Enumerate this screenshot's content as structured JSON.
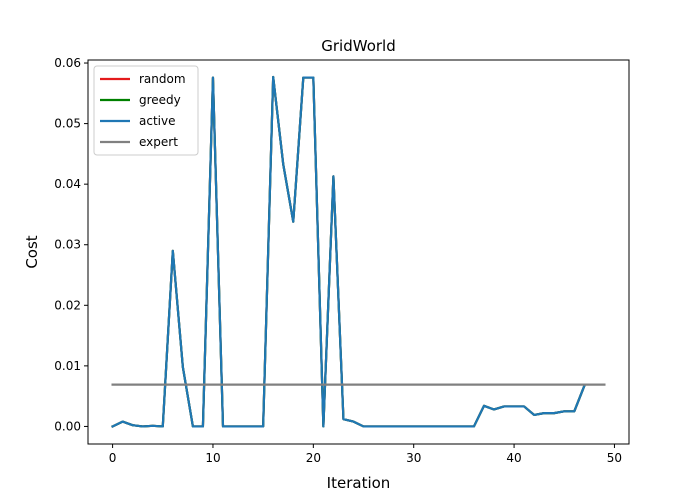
{
  "chart_data": {
    "type": "line",
    "title": "GridWorld",
    "xlabel": "Iteration",
    "ylabel": "Cost",
    "xlim": [
      -2.45,
      51.45
    ],
    "ylim": [
      -0.0029,
      0.0605
    ],
    "xticks": [
      0,
      10,
      20,
      30,
      40,
      50
    ],
    "yticks": [
      0.0,
      0.01,
      0.02,
      0.03,
      0.04,
      0.05,
      0.06
    ],
    "ytick_labels": [
      "0.00",
      "0.01",
      "0.02",
      "0.03",
      "0.04",
      "0.05",
      "0.06"
    ],
    "grid": false,
    "legend_position": "upper-left",
    "series": [
      {
        "name": "random",
        "color": "#e41a1c",
        "x": [
          0,
          1,
          2,
          3,
          4,
          5,
          6,
          7,
          8,
          9,
          10,
          11,
          12,
          13,
          14,
          15,
          16,
          17,
          18,
          19,
          20,
          21,
          22,
          23,
          24,
          25,
          26,
          27,
          28,
          29,
          30,
          31,
          32,
          33,
          34,
          35,
          36,
          37,
          38,
          39,
          40,
          41,
          42,
          43,
          44,
          45,
          46,
          47
        ],
        "values": [
          0.0,
          0.0008,
          0.0002,
          0.0,
          0.0001,
          0.0,
          0.029,
          0.0098,
          0.0,
          0.0,
          0.0576,
          0.0,
          0.0,
          0.0,
          0.0,
          0.0,
          0.0577,
          0.0433,
          0.0338,
          0.0576,
          0.0576,
          0.0,
          0.0413,
          0.0012,
          0.0008,
          0.0,
          0.0,
          0.0,
          0.0,
          0.0,
          0.0,
          0.0,
          0.0,
          0.0,
          0.0,
          0.0,
          0.0,
          0.0034,
          0.0028,
          0.0033,
          0.0033,
          0.0033,
          0.0019,
          0.0022,
          0.0022,
          0.0025,
          0.0025,
          0.0067
        ]
      },
      {
        "name": "greedy",
        "color": "#008000",
        "x": [
          0,
          1,
          2,
          3,
          4,
          5,
          6,
          7,
          8,
          9,
          10,
          11,
          12,
          13,
          14,
          15,
          16,
          17,
          18,
          19,
          20,
          21,
          22,
          23,
          24,
          25,
          26,
          27,
          28,
          29,
          30,
          31,
          32,
          33,
          34,
          35,
          36,
          37,
          38,
          39,
          40,
          41,
          42,
          43,
          44,
          45,
          46,
          47
        ],
        "values": [
          0.0,
          0.0008,
          0.0002,
          0.0,
          0.0001,
          0.0,
          0.029,
          0.0098,
          0.0,
          0.0,
          0.0576,
          0.0,
          0.0,
          0.0,
          0.0,
          0.0,
          0.0577,
          0.0433,
          0.0338,
          0.0576,
          0.0576,
          0.0,
          0.0413,
          0.0012,
          0.0008,
          0.0,
          0.0,
          0.0,
          0.0,
          0.0,
          0.0,
          0.0,
          0.0,
          0.0,
          0.0,
          0.0,
          0.0,
          0.0034,
          0.0028,
          0.0033,
          0.0033,
          0.0033,
          0.0019,
          0.0022,
          0.0022,
          0.0025,
          0.0025,
          0.0067
        ]
      },
      {
        "name": "active",
        "color": "#1f77b4",
        "x": [
          0,
          1,
          2,
          3,
          4,
          5,
          6,
          7,
          8,
          9,
          10,
          11,
          12,
          13,
          14,
          15,
          16,
          17,
          18,
          19,
          20,
          21,
          22,
          23,
          24,
          25,
          26,
          27,
          28,
          29,
          30,
          31,
          32,
          33,
          34,
          35,
          36,
          37,
          38,
          39,
          40,
          41,
          42,
          43,
          44,
          45,
          46,
          47
        ],
        "values": [
          0.0,
          0.0008,
          0.0002,
          0.0,
          0.0001,
          0.0,
          0.029,
          0.0098,
          0.0,
          0.0,
          0.0576,
          0.0,
          0.0,
          0.0,
          0.0,
          0.0,
          0.0577,
          0.0433,
          0.0338,
          0.0576,
          0.0576,
          0.0,
          0.0413,
          0.0012,
          0.0008,
          0.0,
          0.0,
          0.0,
          0.0,
          0.0,
          0.0,
          0.0,
          0.0,
          0.0,
          0.0,
          0.0,
          0.0,
          0.0034,
          0.0028,
          0.0033,
          0.0033,
          0.0033,
          0.0019,
          0.0022,
          0.0022,
          0.0025,
          0.0025,
          0.0067
        ]
      },
      {
        "name": "expert",
        "color": "#808080",
        "x": [
          0,
          49
        ],
        "values": [
          0.0069,
          0.0069
        ]
      }
    ]
  }
}
